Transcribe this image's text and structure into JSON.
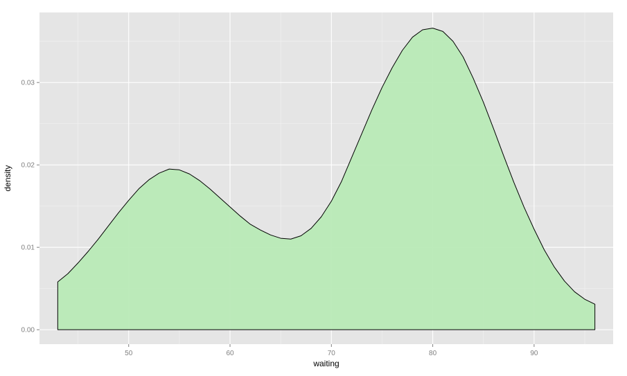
{
  "chart_data": {
    "type": "area",
    "xlabel": "waiting",
    "ylabel": "density",
    "xlim": [
      41.2,
      97.8
    ],
    "ylim": [
      -0.00175,
      0.0385
    ],
    "x_ticks": [
      50,
      60,
      70,
      80,
      90
    ],
    "x_tick_labels": [
      "50",
      "60",
      "70",
      "80",
      "90"
    ],
    "y_ticks": [
      0.0,
      0.01,
      0.02,
      0.03
    ],
    "y_tick_labels": [
      "0.00",
      "0.01",
      "0.02",
      "0.03"
    ],
    "grid": true,
    "colors": {
      "panel": "#e5e5e5",
      "grid_major": "#ffffff",
      "grid_minor": "#f2f2f2",
      "fill": "#b8eab6",
      "line": "#000000"
    },
    "series": [
      {
        "x": [
          43,
          44,
          45,
          46,
          47,
          48,
          49,
          50,
          51,
          52,
          53,
          54,
          55,
          56,
          57,
          58,
          59,
          60,
          61,
          62,
          63,
          64,
          65,
          66,
          67,
          68,
          69,
          70,
          71,
          72,
          73,
          74,
          75,
          76,
          77,
          78,
          79,
          80,
          81,
          82,
          83,
          84,
          85,
          86,
          87,
          88,
          89,
          90,
          91,
          92,
          93,
          94,
          95,
          96
        ],
        "y": [
          0.0058,
          0.0068,
          0.0081,
          0.0095,
          0.011,
          0.0126,
          0.0142,
          0.0157,
          0.0171,
          0.0182,
          0.019,
          0.0195,
          0.0194,
          0.0189,
          0.0181,
          0.0171,
          0.016,
          0.0149,
          0.0138,
          0.0128,
          0.0121,
          0.0115,
          0.0111,
          0.011,
          0.0114,
          0.0123,
          0.0137,
          0.0156,
          0.018,
          0.0209,
          0.0238,
          0.0267,
          0.0294,
          0.0318,
          0.0339,
          0.0355,
          0.0364,
          0.0366,
          0.0362,
          0.035,
          0.0331,
          0.0305,
          0.0276,
          0.0244,
          0.0211,
          0.0179,
          0.0149,
          0.0122,
          0.0097,
          0.0076,
          0.0059,
          0.0046,
          0.0037,
          0.0031
        ]
      }
    ]
  }
}
